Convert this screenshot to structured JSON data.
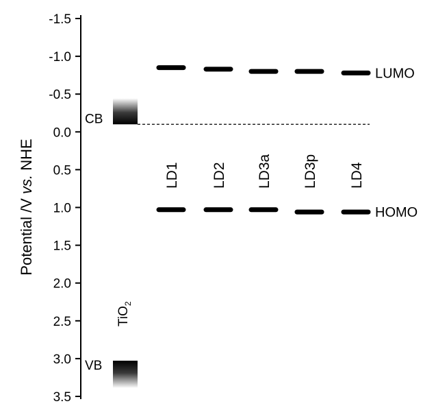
{
  "chart_data": {
    "type": "energy-level-diagram",
    "ylabel": "Potential /V vs. NHE",
    "ylabel_parts": {
      "prefix": "Potential /V ",
      "italic": "vs.",
      "suffix": " NHE"
    },
    "ylim": [
      -1.5,
      3.5
    ],
    "y_inverted": true,
    "y_ticks": [
      -1.5,
      -1.0,
      -0.5,
      0.0,
      0.5,
      1.0,
      1.5,
      2.0,
      2.5,
      3.0,
      3.5
    ],
    "y_tick_labels": [
      "-1.5",
      "-1.0",
      "-0.5",
      "0.0",
      "0.5",
      "1.0",
      "1.5",
      "2.0",
      "2.5",
      "3.0",
      "3.5"
    ],
    "reference_line": {
      "y": -0.1,
      "style": "dashed"
    },
    "semiconductor": {
      "name_main": "TiO",
      "name_sub": "2",
      "cb_label": "CB",
      "vb_label": "VB",
      "cb_edge": -0.1,
      "vb_edge": 3.1
    },
    "categories": [
      "LD1",
      "LD2",
      "LD3a",
      "LD3p",
      "LD4"
    ],
    "series": [
      {
        "name": "LUMO",
        "values": [
          -0.85,
          -0.83,
          -0.8,
          -0.8,
          -0.78
        ]
      },
      {
        "name": "HOMO",
        "values": [
          1.03,
          1.03,
          1.03,
          1.06,
          1.06
        ]
      }
    ],
    "colors": {
      "line": "#000000",
      "background": "#ffffff"
    }
  }
}
